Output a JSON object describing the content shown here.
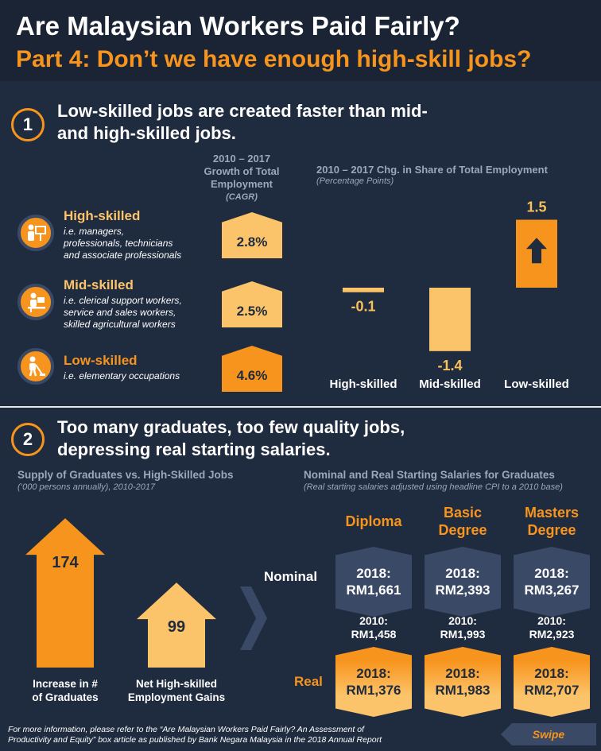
{
  "header": {
    "title": "Are Malaysian Workers Paid Fairly?",
    "subtitle": "Part 4: Don’t we have enough high-skill jobs?"
  },
  "section1": {
    "number": "1",
    "title_line1": "Low-skilled jobs are created faster than mid-",
    "title_line2": "and high-skilled jobs.",
    "growth_head_line1": "2010 – 2017",
    "growth_head_line2": "Growth of Total",
    "growth_head_line3": "Employment",
    "growth_note": "(CAGR)",
    "share_head": "2010 – 2017 Chg. in Share of Total Employment",
    "share_note": "(Percentage Points)",
    "skills": [
      {
        "name": "High-skilled",
        "desc1": "i.e. managers,",
        "desc2": "professionals, technicians",
        "desc3": "and associate professionals",
        "growth": "2.8%",
        "icon": "presenter-icon"
      },
      {
        "name": "Mid-skilled",
        "desc1": "i.e. clerical support workers,",
        "desc2": "service and sales workers,",
        "desc3": "skilled agricultural workers",
        "growth": "2.5%",
        "icon": "desk-worker-icon"
      },
      {
        "name": "Low-skilled",
        "desc1": "i.e. elementary  occupations",
        "desc2": "",
        "desc3": "",
        "growth": "4.6%",
        "icon": "sweeper-icon"
      }
    ]
  },
  "chart_data": [
    {
      "type": "bar",
      "title": "2010 – 2017 Chg. in Share of Total Employment",
      "subtitle": "(Percentage Points)",
      "categories": [
        "High-skilled",
        "Mid-skilled",
        "Low-skilled"
      ],
      "values": [
        -0.1,
        -1.4,
        1.5
      ],
      "labels": [
        "-0.1",
        "-1.4",
        "1.5"
      ],
      "colors": [
        "#fcc46a",
        "#fcc46a",
        "#f7941d"
      ]
    },
    {
      "type": "bar",
      "title": "Supply of Graduates vs. High-Skilled Jobs",
      "subtitle": "(‘000 persons annually), 2010-2017",
      "categories": [
        "Increase in # of Graduates",
        "Net High-skilled Employment Gains"
      ],
      "values": [
        174,
        99
      ],
      "colors": [
        "#f7941d",
        "#fcc46a"
      ]
    }
  ],
  "section2": {
    "number": "2",
    "title_line1": "Too many graduates, too few quality jobs,",
    "title_line2": "depressing real starting salaries.",
    "supply_head": "Supply of Graduates vs. High-Skilled Jobs",
    "supply_note": "(‘000 persons annually), 2010-2017",
    "grad_label1": "Increase in #",
    "grad_label2": "of Graduates",
    "gains_label1": "Net High-skilled",
    "gains_label2": "Employment Gains",
    "salary_head": "Nominal and Real Starting Salaries for Graduates",
    "salary_note": "(Real starting salaries adjusted using headline CPI to a 2010 base)",
    "nominal_label": "Nominal",
    "real_label": "Real",
    "degrees": [
      {
        "head1": "Diploma",
        "head2": "",
        "nominal_year": "2018:",
        "nominal_value": "RM1,661",
        "base_year": "2010:",
        "base_value": "RM1,458",
        "real_year": "2018:",
        "real_value": "RM1,376"
      },
      {
        "head1": "Basic",
        "head2": "Degree",
        "nominal_year": "2018:",
        "nominal_value": "RM2,393",
        "base_year": "2010:",
        "base_value": "RM1,993",
        "real_year": "2018:",
        "real_value": "RM1,983"
      },
      {
        "head1": "Masters",
        "head2": "Degree",
        "nominal_year": "2018:",
        "nominal_value": "RM3,267",
        "base_year": "2010:",
        "base_value": "RM2,923",
        "real_year": "2018:",
        "real_value": "RM2,707"
      }
    ]
  },
  "footer": {
    "note1": "For more information, please refer to the “Are Malaysian Workers Paid Fairly? An Assessment of",
    "note2": "Productivity and Equity” box article as published by Bank Negara Malaysia in the 2018 Annual Report",
    "swipe_label": "Swipe"
  },
  "colors": {
    "background": "#1f2b3e",
    "accent": "#f7941d",
    "light_accent": "#fcc46a",
    "panel": "#3a4a66"
  }
}
